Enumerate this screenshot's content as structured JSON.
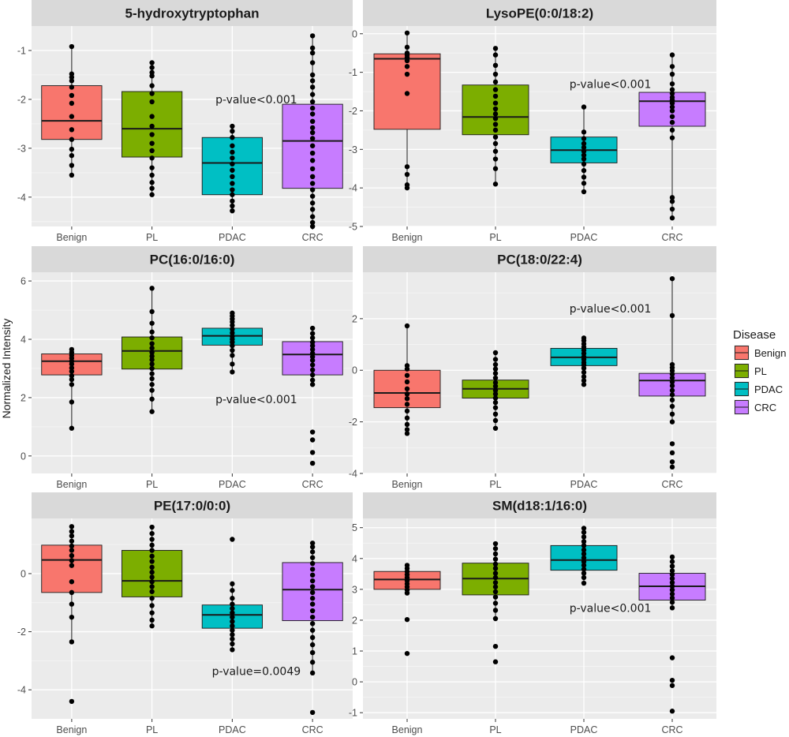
{
  "chart_data": {
    "type": "boxplot",
    "ylabel": "Normalized Intensity",
    "categories": [
      "Benign",
      "PL",
      "PDAC",
      "CRC"
    ],
    "colors": {
      "Benign": "#F8766D",
      "PL": "#7CAE00",
      "PDAC": "#00BFC4",
      "CRC": "#C77CFF"
    },
    "legend": {
      "title": "Disease",
      "items": [
        "Benign",
        "PL",
        "PDAC",
        "CRC"
      ]
    },
    "panels": [
      {
        "title": "5-hydroxytryptophan",
        "ylim": [
          -4.6,
          -0.5
        ],
        "yticks": [
          -4,
          -3,
          -2,
          -1
        ],
        "annotation": "p-value<0.001",
        "annotation_at": {
          "category": 2.3,
          "y": -2.0
        },
        "boxes": [
          {
            "category": "Benign",
            "q1": -2.82,
            "median": -2.44,
            "q3": -1.72,
            "whisker_low": -3.55,
            "whisker_high": -0.92,
            "points": [
              -0.92,
              -1.48,
              -1.55,
              -1.62,
              -1.75,
              -1.92,
              -2.08,
              -2.35,
              -2.62,
              -2.82,
              -3.02,
              -3.15,
              -3.35,
              -3.55
            ]
          },
          {
            "category": "PL",
            "q1": -3.18,
            "median": -2.6,
            "q3": -1.84,
            "whisker_low": -3.95,
            "whisker_high": -1.25,
            "points": [
              -1.25,
              -1.35,
              -1.45,
              -1.52,
              -1.72,
              -1.88,
              -2.05,
              -2.35,
              -2.55,
              -2.72,
              -2.9,
              -3.05,
              -3.2,
              -3.4,
              -3.55,
              -3.7,
              -3.82,
              -3.95
            ]
          },
          {
            "category": "PDAC",
            "q1": -3.95,
            "median": -3.3,
            "q3": -2.78,
            "whisker_low": -4.28,
            "whisker_high": -2.55,
            "points": [
              -2.55,
              -2.65,
              -2.78,
              -2.95,
              -3.08,
              -3.2,
              -3.32,
              -3.45,
              -3.58,
              -3.72,
              -3.85,
              -3.95,
              -4.08,
              -4.18,
              -4.28
            ]
          },
          {
            "category": "CRC",
            "q1": -3.82,
            "median": -2.85,
            "q3": -2.1,
            "whisker_low": -4.6,
            "whisker_high": -0.7,
            "points": [
              -0.7,
              -0.95,
              -1.05,
              -1.25,
              -1.5,
              -1.62,
              -1.75,
              -1.9,
              -2.05,
              -2.18,
              -2.3,
              -2.45,
              -2.58,
              -2.68,
              -2.8,
              -2.95,
              -3.1,
              -3.25,
              -3.42,
              -3.58,
              -3.72,
              -3.85,
              -3.98,
              -4.12,
              -4.25,
              -4.4,
              -4.52,
              -4.6
            ]
          }
        ]
      },
      {
        "title": "LysoPE(0:0/18:2)",
        "ylim": [
          -5.0,
          0.2
        ],
        "yticks": [
          -5,
          -4,
          -3,
          -2,
          -1,
          0
        ],
        "annotation": "p-value<0.001",
        "annotation_at": {
          "category": 2.3,
          "y": -1.3
        },
        "boxes": [
          {
            "category": "Benign",
            "q1": -2.48,
            "median": -0.65,
            "q3": -0.52,
            "whisker_low": -4.0,
            "whisker_high": 0.02,
            "points": [
              0.02,
              -0.35,
              -0.5,
              -0.55,
              -0.62,
              -0.7,
              -0.85,
              -1.05,
              -1.55,
              -3.45,
              -3.65,
              -3.92,
              -4.0
            ]
          },
          {
            "category": "PL",
            "q1": -2.62,
            "median": -2.16,
            "q3": -1.33,
            "whisker_low": -3.9,
            "whisker_high": -0.38,
            "points": [
              -0.38,
              -0.55,
              -0.82,
              -1.05,
              -1.25,
              -1.45,
              -1.62,
              -1.8,
              -1.95,
              -2.08,
              -2.2,
              -2.35,
              -2.5,
              -2.68,
              -2.85,
              -3.05,
              -3.25,
              -3.5,
              -3.9
            ]
          },
          {
            "category": "PDAC",
            "q1": -3.35,
            "median": -3.02,
            "q3": -2.68,
            "whisker_low": -4.1,
            "whisker_high": -1.9,
            "points": [
              -1.9,
              -2.55,
              -2.72,
              -2.85,
              -2.95,
              -3.05,
              -3.15,
              -3.25,
              -3.38,
              -3.55,
              -3.72,
              -3.88,
              -4.1
            ]
          },
          {
            "category": "CRC",
            "q1": -2.4,
            "median": -1.75,
            "q3": -1.52,
            "whisker_low": -4.78,
            "whisker_high": -0.55,
            "points": [
              -0.55,
              -0.85,
              -1.05,
              -1.3,
              -1.45,
              -1.55,
              -1.65,
              -1.72,
              -1.8,
              -1.9,
              -2.0,
              -2.15,
              -2.3,
              -2.5,
              -2.7,
              -4.25,
              -4.35,
              -4.55,
              -4.78
            ]
          }
        ]
      },
      {
        "title": "PC(16:0/16:0)",
        "ylim": [
          -0.6,
          6.3
        ],
        "yticks": [
          0,
          2,
          4,
          6
        ],
        "annotation": "p-value<0.001",
        "annotation_at": {
          "category": 2.3,
          "y": 1.95
        },
        "boxes": [
          {
            "category": "Benign",
            "q1": 2.78,
            "median": 3.25,
            "q3": 3.5,
            "whisker_low": 0.95,
            "whisker_high": 3.65,
            "points": [
              3.65,
              3.55,
              3.45,
              3.35,
              3.25,
              3.15,
              3.02,
              2.9,
              2.75,
              2.62,
              2.45,
              1.85,
              0.95
            ]
          },
          {
            "category": "PL",
            "q1": 2.98,
            "median": 3.6,
            "q3": 4.08,
            "whisker_low": 1.52,
            "whisker_high": 5.75,
            "points": [
              5.75,
              4.95,
              4.55,
              4.25,
              4.05,
              3.85,
              3.7,
              3.55,
              3.42,
              3.3,
              3.15,
              3.0,
              2.82,
              2.65,
              2.45,
              2.25,
              1.95,
              1.52
            ]
          },
          {
            "category": "PDAC",
            "q1": 3.8,
            "median": 4.12,
            "q3": 4.38,
            "whisker_low": 2.88,
            "whisker_high": 4.9,
            "points": [
              4.9,
              4.8,
              4.7,
              4.6,
              4.48,
              4.35,
              4.22,
              4.1,
              4.0,
              3.9,
              3.78,
              3.62,
              3.45,
              3.15,
              2.88
            ]
          },
          {
            "category": "CRC",
            "q1": 2.78,
            "median": 3.48,
            "q3": 3.92,
            "whisker_low": 2.45,
            "whisker_high": 4.38,
            "points": [
              4.38,
              4.2,
              4.05,
              3.9,
              3.78,
              3.65,
              3.52,
              3.4,
              3.28,
              3.12,
              2.95,
              2.78,
              2.6,
              2.45,
              0.82,
              0.55,
              0.12,
              -0.25
            ]
          }
        ]
      },
      {
        "title": "PC(18:0/22:4)",
        "ylim": [
          -4.0,
          3.8
        ],
        "yticks": [
          -4,
          -2,
          0,
          2
        ],
        "annotation": "p-value<0.001",
        "annotation_at": {
          "category": 2.3,
          "y": 2.4
        },
        "boxes": [
          {
            "category": "Benign",
            "q1": -1.45,
            "median": -0.88,
            "q3": 0.0,
            "whisker_low": -2.45,
            "whisker_high": 1.72,
            "points": [
              1.72,
              0.18,
              0.05,
              -0.2,
              -0.45,
              -0.72,
              -0.92,
              -1.1,
              -1.32,
              -1.58,
              -1.85,
              -2.1,
              -2.3,
              -2.45
            ]
          },
          {
            "category": "PL",
            "q1": -1.08,
            "median": -0.72,
            "q3": -0.38,
            "whisker_low": -2.25,
            "whisker_high": 0.68,
            "points": [
              0.68,
              0.42,
              0.22,
              0.05,
              -0.12,
              -0.3,
              -0.48,
              -0.62,
              -0.78,
              -0.92,
              -1.08,
              -1.25,
              -1.45,
              -1.7,
              -1.95,
              -2.25
            ]
          },
          {
            "category": "PDAC",
            "q1": 0.18,
            "median": 0.5,
            "q3": 0.85,
            "whisker_low": -0.55,
            "whisker_high": 1.25,
            "points": [
              1.25,
              1.15,
              1.02,
              0.9,
              0.78,
              0.65,
              0.52,
              0.42,
              0.3,
              0.2,
              0.08,
              -0.08,
              -0.25,
              -0.4,
              -0.55
            ]
          },
          {
            "category": "CRC",
            "q1": -1.0,
            "median": -0.4,
            "q3": -0.12,
            "whisker_low": -2.0,
            "whisker_high": 3.55,
            "points": [
              3.55,
              2.12,
              0.22,
              0.1,
              -0.02,
              -0.15,
              -0.3,
              -0.45,
              -0.6,
              -0.78,
              -0.95,
              -1.15,
              -1.4,
              -1.7,
              -2.0,
              -2.85,
              -3.2,
              -3.55,
              -3.75
            ]
          }
        ]
      },
      {
        "title": "PE(17:0/0:0)",
        "ylim": [
          -5.0,
          1.9
        ],
        "yticks": [
          -4,
          -2,
          0
        ],
        "annotation": "p-value=0.0049",
        "annotation_at": {
          "category": 2.3,
          "y": -3.35
        },
        "boxes": [
          {
            "category": "Benign",
            "q1": -0.65,
            "median": 0.47,
            "q3": 0.98,
            "whisker_low": -2.35,
            "whisker_high": 1.62,
            "points": [
              1.62,
              1.45,
              1.3,
              1.12,
              0.95,
              0.8,
              0.62,
              0.45,
              0.28,
              -0.28,
              -0.65,
              -1.05,
              -1.5,
              -2.35,
              -4.4
            ]
          },
          {
            "category": "PL",
            "q1": -0.8,
            "median": -0.25,
            "q3": 0.8,
            "whisker_low": -1.8,
            "whisker_high": 1.6,
            "points": [
              1.6,
              1.38,
              1.18,
              0.98,
              0.8,
              0.6,
              0.42,
              0.22,
              0.05,
              -0.12,
              -0.28,
              -0.45,
              -0.62,
              -0.85,
              -1.1,
              -1.35,
              -1.6,
              -1.8
            ]
          },
          {
            "category": "PDAC",
            "q1": -1.88,
            "median": -1.42,
            "q3": -1.08,
            "whisker_low": -2.62,
            "whisker_high": -0.35,
            "points": [
              1.18,
              -0.35,
              -0.58,
              -0.85,
              -1.05,
              -1.2,
              -1.35,
              -1.5,
              -1.65,
              -1.8,
              -1.95,
              -2.1,
              -2.25,
              -2.42,
              -2.62
            ]
          },
          {
            "category": "CRC",
            "q1": -1.62,
            "median": -0.55,
            "q3": 0.38,
            "whisker_low": -3.42,
            "whisker_high": 1.05,
            "points": [
              1.05,
              0.92,
              0.75,
              0.55,
              0.35,
              0.15,
              -0.05,
              -0.25,
              -0.45,
              -0.65,
              -0.85,
              -1.05,
              -1.28,
              -1.5,
              -1.72,
              -1.95,
              -2.2,
              -2.45,
              -2.72,
              -3.05,
              -3.42,
              -4.78
            ]
          }
        ]
      },
      {
        "title": "SM(d18:1/16:0)",
        "ylim": [
          -1.2,
          5.3
        ],
        "yticks": [
          -1,
          0,
          1,
          2,
          3,
          4,
          5
        ],
        "annotation": "p-value<0.001",
        "annotation_at": {
          "category": 2.3,
          "y": 2.4
        },
        "boxes": [
          {
            "category": "Benign",
            "q1": 3.0,
            "median": 3.32,
            "q3": 3.58,
            "whisker_low": 2.88,
            "whisker_high": 3.78,
            "points": [
              3.78,
              3.68,
              3.58,
              3.48,
              3.38,
              3.28,
              3.18,
              3.08,
              2.98,
              2.88,
              2.02,
              0.92
            ]
          },
          {
            "category": "PL",
            "q1": 2.82,
            "median": 3.35,
            "q3": 3.85,
            "whisker_low": 2.05,
            "whisker_high": 4.48,
            "points": [
              4.48,
              4.32,
              4.15,
              3.98,
              3.82,
              3.68,
              3.52,
              3.38,
              3.22,
              3.08,
              2.92,
              2.75,
              2.55,
              2.32,
              2.05,
              1.15,
              0.65
            ]
          },
          {
            "category": "PDAC",
            "q1": 3.62,
            "median": 3.95,
            "q3": 4.42,
            "whisker_low": 3.2,
            "whisker_high": 4.98,
            "points": [
              4.98,
              4.85,
              4.7,
              4.55,
              4.42,
              4.28,
              4.15,
              4.02,
              3.9,
              3.78,
              3.65,
              3.52,
              3.38,
              3.2
            ]
          },
          {
            "category": "CRC",
            "q1": 2.65,
            "median": 3.1,
            "q3": 3.52,
            "whisker_low": 2.4,
            "whisker_high": 4.05,
            "points": [
              4.05,
              3.9,
              3.75,
              3.6,
              3.48,
              3.35,
              3.22,
              3.1,
              2.98,
              2.85,
              2.72,
              2.58,
              2.4,
              0.78,
              0.05,
              -0.12,
              -0.95
            ]
          }
        ]
      }
    ]
  }
}
